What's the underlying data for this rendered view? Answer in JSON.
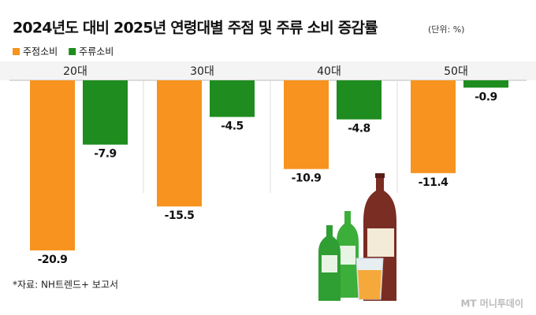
{
  "chart_data": {
    "type": "bar",
    "title": "2024년도 대비 2025년 연령대별 주점 및 주류 소비 증감률",
    "subtitle": "(단위: %)",
    "categories": [
      "20대",
      "30대",
      "40대",
      "50대"
    ],
    "series": [
      {
        "name": "주점소비",
        "color": "#f7931e",
        "values": [
          -20.9,
          -15.5,
          -10.9,
          -11.4
        ]
      },
      {
        "name": "주류소비",
        "color": "#1e8c1e",
        "values": [
          -7.9,
          -4.5,
          -4.8,
          -0.9
        ]
      }
    ]
  },
  "source": "*자료: NH트렌드+ 보고서",
  "brand": "MT 머니투데이"
}
